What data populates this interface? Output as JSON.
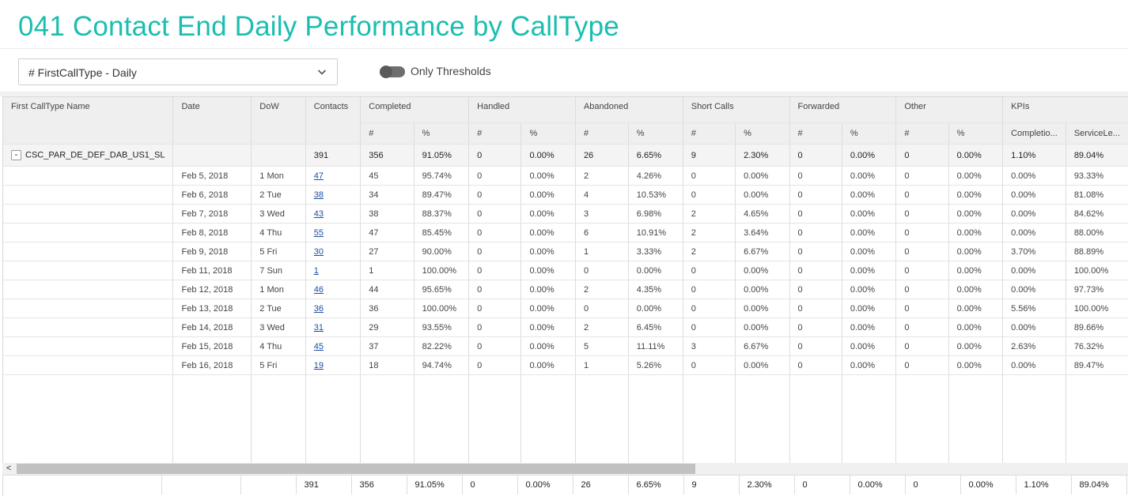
{
  "page": {
    "title": "041 Contact End Daily Performance by CallType"
  },
  "controls": {
    "select_value": "# FirstCallType - Daily",
    "toggle_label": "Only Thresholds"
  },
  "grid": {
    "headers": {
      "name": "First CallType Name",
      "date": "Date",
      "dow": "DoW",
      "contacts": "Contacts",
      "groups": [
        "Completed",
        "Handled",
        "Abandoned",
        "Short Calls",
        "Forwarded",
        "Other",
        "KPIs"
      ],
      "sub_num": "#",
      "sub_pct": "%",
      "kpi_1": "Completio...",
      "kpi_2": "ServiceLe..."
    },
    "summary": {
      "name": "CSC_PAR_DE_DEF_DAB_US1_SL",
      "cells": [
        "391",
        "356",
        "91.05%",
        "0",
        "0.00%",
        "26",
        "6.65%",
        "9",
        "2.30%",
        "0",
        "0.00%",
        "0",
        "0.00%",
        "1.10%",
        "89.04%"
      ]
    },
    "rows": [
      [
        "Feb 5, 2018",
        "1 Mon",
        "47",
        "45",
        "95.74%",
        "0",
        "0.00%",
        "2",
        "4.26%",
        "0",
        "0.00%",
        "0",
        "0.00%",
        "0",
        "0.00%",
        "0.00%",
        "93.33%"
      ],
      [
        "Feb 6, 2018",
        "2 Tue",
        "38",
        "34",
        "89.47%",
        "0",
        "0.00%",
        "4",
        "10.53%",
        "0",
        "0.00%",
        "0",
        "0.00%",
        "0",
        "0.00%",
        "0.00%",
        "81.08%"
      ],
      [
        "Feb 7, 2018",
        "3 Wed",
        "43",
        "38",
        "88.37%",
        "0",
        "0.00%",
        "3",
        "6.98%",
        "2",
        "4.65%",
        "0",
        "0.00%",
        "0",
        "0.00%",
        "0.00%",
        "84.62%"
      ],
      [
        "Feb 8, 2018",
        "4 Thu",
        "55",
        "47",
        "85.45%",
        "0",
        "0.00%",
        "6",
        "10.91%",
        "2",
        "3.64%",
        "0",
        "0.00%",
        "0",
        "0.00%",
        "0.00%",
        "88.00%"
      ],
      [
        "Feb 9, 2018",
        "5 Fri",
        "30",
        "27",
        "90.00%",
        "0",
        "0.00%",
        "1",
        "3.33%",
        "2",
        "6.67%",
        "0",
        "0.00%",
        "0",
        "0.00%",
        "3.70%",
        "88.89%"
      ],
      [
        "Feb 11, 2018",
        "7 Sun",
        "1",
        "1",
        "100.00%",
        "0",
        "0.00%",
        "0",
        "0.00%",
        "0",
        "0.00%",
        "0",
        "0.00%",
        "0",
        "0.00%",
        "0.00%",
        "100.00%"
      ],
      [
        "Feb 12, 2018",
        "1 Mon",
        "46",
        "44",
        "95.65%",
        "0",
        "0.00%",
        "2",
        "4.35%",
        "0",
        "0.00%",
        "0",
        "0.00%",
        "0",
        "0.00%",
        "0.00%",
        "97.73%"
      ],
      [
        "Feb 13, 2018",
        "2 Tue",
        "36",
        "36",
        "100.00%",
        "0",
        "0.00%",
        "0",
        "0.00%",
        "0",
        "0.00%",
        "0",
        "0.00%",
        "0",
        "0.00%",
        "5.56%",
        "100.00%"
      ],
      [
        "Feb 14, 2018",
        "3 Wed",
        "31",
        "29",
        "93.55%",
        "0",
        "0.00%",
        "2",
        "6.45%",
        "0",
        "0.00%",
        "0",
        "0.00%",
        "0",
        "0.00%",
        "0.00%",
        "89.66%"
      ],
      [
        "Feb 15, 2018",
        "4 Thu",
        "45",
        "37",
        "82.22%",
        "0",
        "0.00%",
        "5",
        "11.11%",
        "3",
        "6.67%",
        "0",
        "0.00%",
        "0",
        "0.00%",
        "2.63%",
        "76.32%"
      ],
      [
        "Feb 16, 2018",
        "5 Fri",
        "19",
        "18",
        "94.74%",
        "0",
        "0.00%",
        "1",
        "5.26%",
        "0",
        "0.00%",
        "0",
        "0.00%",
        "0",
        "0.00%",
        "0.00%",
        "89.47%"
      ]
    ],
    "totals": [
      "391",
      "356",
      "91.05%",
      "0",
      "0.00%",
      "26",
      "6.65%",
      "9",
      "2.30%",
      "0",
      "0.00%",
      "0",
      "0.00%",
      "1.10%",
      "89.04%"
    ]
  },
  "scrollbar": {
    "left_arrow": "<"
  }
}
